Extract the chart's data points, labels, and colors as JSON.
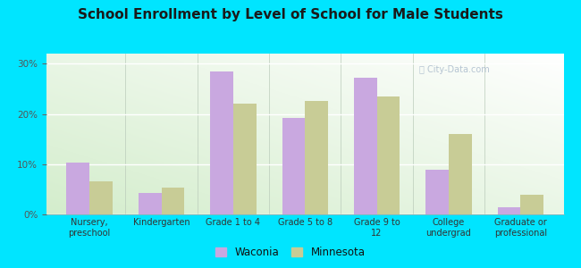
{
  "title": "School Enrollment by Level of School for Male Students",
  "categories": [
    "Nursery,\npreschool",
    "Kindergarten",
    "Grade 1 to 4",
    "Grade 5 to 8",
    "Grade 9 to\n12",
    "College\nundergrad",
    "Graduate or\nprofessional"
  ],
  "waconia": [
    10.3,
    4.2,
    28.5,
    19.2,
    27.2,
    8.9,
    1.4
  ],
  "minnesota": [
    6.5,
    5.3,
    22.0,
    22.5,
    23.5,
    16.0,
    4.0
  ],
  "waconia_color": "#c9a8e0",
  "minnesota_color": "#c8cc96",
  "background_outer": "#00e5ff",
  "title_fontsize": 11,
  "ylim": [
    0,
    32
  ],
  "yticks": [
    0,
    10,
    20,
    30
  ],
  "bar_width": 0.32,
  "legend_labels": [
    "Waconia",
    "Minnesota"
  ],
  "grad_colors": [
    "#c8e6c0",
    "#f0f5f0",
    "#ffffff"
  ],
  "watermark": "City-Data.com"
}
